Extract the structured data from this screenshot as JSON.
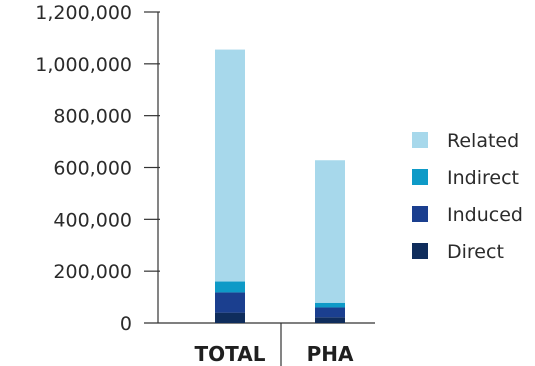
{
  "chart_data": {
    "type": "bar",
    "stacked": true,
    "title": "",
    "xlabel": "",
    "ylabel": "",
    "categories": [
      "TOTAL",
      "PHA"
    ],
    "ylim": [
      0,
      1200000
    ],
    "y_ticks": [
      0,
      200000,
      400000,
      600000,
      800000,
      1000000,
      1200000
    ],
    "y_tick_labels": [
      "0",
      "200,000",
      "400,000",
      "600,000",
      "800,000",
      "1,000,000",
      "1,200,000"
    ],
    "grid": false,
    "legend_position": "right",
    "series": [
      {
        "name": "Direct",
        "color": "#0f2d5c",
        "values": [
          40000,
          22000
        ]
      },
      {
        "name": "Induced",
        "color": "#1b3f8f",
        "values": [
          78000,
          38000
        ]
      },
      {
        "name": "Indirect",
        "color": "#0e9ac7",
        "values": [
          42000,
          18000
        ]
      },
      {
        "name": "Related",
        "color": "#a7d8eb",
        "values": [
          895000,
          550000
        ]
      }
    ],
    "legend_order": [
      "Related",
      "Indirect",
      "Induced",
      "Direct"
    ]
  }
}
